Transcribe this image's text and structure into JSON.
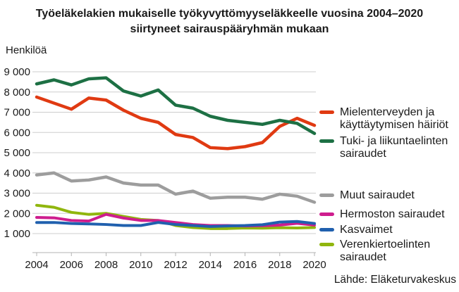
{
  "title": {
    "line1": "Työeläkelakien mukaiselle työkyvyttömyyseläkkeelle vuosina 2004–2020",
    "line2": "siirtyneet sairauspääryhmän mukaan"
  },
  "source": "Lähde: Eläketurvakeskus",
  "chart_data": {
    "type": "line",
    "title": "Työeläkelakien mukaiselle työkyvyttömyyseläkkeelle vuosina 2004–2020 siirtyneet sairauspääryhmän mukaan",
    "ylabel": "Henkilöä",
    "xlabel": "",
    "x": [
      2004,
      2005,
      2006,
      2007,
      2008,
      2009,
      2010,
      2011,
      2012,
      2013,
      2014,
      2015,
      2016,
      2017,
      2018,
      2019,
      2020
    ],
    "x_ticks": [
      2004,
      2006,
      2008,
      2010,
      2012,
      2014,
      2016,
      2018,
      2020
    ],
    "x_tick_labels": [
      "2004",
      "2006",
      "2008",
      "2010",
      "2012",
      "2014",
      "2016",
      "2018",
      "2020"
    ],
    "y_ticks": [
      1000,
      2000,
      3000,
      4000,
      5000,
      6000,
      7000,
      8000,
      9000
    ],
    "y_tick_labels": [
      "1 000",
      "2 000",
      "3 000",
      "4 000",
      "5 000",
      "6 000",
      "7 000",
      "8 000",
      "9 000"
    ],
    "ylim": [
      0,
      9400
    ],
    "grid": "horizontal",
    "legend_position": "right",
    "series": [
      {
        "name": "Mielenterveyden ja käyttäytymisen häiriöt",
        "color": "#e03a12",
        "values": [
          7750,
          7450,
          7150,
          7700,
          7600,
          7100,
          6700,
          6500,
          5900,
          5750,
          5250,
          5200,
          5300,
          5500,
          6300,
          6700,
          6350
        ]
      },
      {
        "name": "Tuki- ja liikuntaelinten sairaudet",
        "color": "#1d7044",
        "values": [
          8400,
          8600,
          8350,
          8650,
          8700,
          8050,
          7800,
          8100,
          7350,
          7200,
          6800,
          6600,
          6500,
          6400,
          6600,
          6450,
          5950
        ]
      },
      {
        "name": "Muut sairaudet",
        "color": "#9d9d9d",
        "values": [
          3900,
          4000,
          3600,
          3650,
          3800,
          3500,
          3400,
          3400,
          2950,
          3100,
          2750,
          2800,
          2800,
          2700,
          2950,
          2850,
          2550
        ]
      },
      {
        "name": "Hermoston sairaudet",
        "color": "#ce1d8e",
        "values": [
          1800,
          1780,
          1650,
          1620,
          1950,
          1770,
          1650,
          1650,
          1550,
          1450,
          1400,
          1400,
          1380,
          1390,
          1420,
          1510,
          1420
        ]
      },
      {
        "name": "Kasvaimet",
        "color": "#2060ae",
        "values": [
          1550,
          1550,
          1500,
          1480,
          1450,
          1400,
          1400,
          1550,
          1450,
          1400,
          1350,
          1380,
          1400,
          1440,
          1570,
          1600,
          1500
        ]
      },
      {
        "name": "Verenkiertoelinten sairaudet",
        "color": "#90b60e",
        "values": [
          2400,
          2300,
          2050,
          1950,
          2000,
          1850,
          1700,
          1650,
          1400,
          1300,
          1250,
          1250,
          1280,
          1270,
          1290,
          1280,
          1300
        ]
      }
    ]
  },
  "legend": {
    "items": [
      {
        "series": 0,
        "lines": [
          "Mielenterveyden ja",
          "käyttäytymisen häiriöt"
        ]
      },
      {
        "series": 1,
        "lines": [
          "Tuki- ja liikuntaelinten",
          "sairaudet"
        ]
      },
      {
        "series": 2,
        "lines": [
          "Muut sairaudet"
        ]
      },
      {
        "series": 3,
        "lines": [
          "Hermoston sairaudet"
        ]
      },
      {
        "series": 4,
        "lines": [
          "Kasvaimet"
        ]
      },
      {
        "series": 5,
        "lines": [
          "Verenkiertoelinten",
          "sairaudet"
        ]
      }
    ]
  }
}
